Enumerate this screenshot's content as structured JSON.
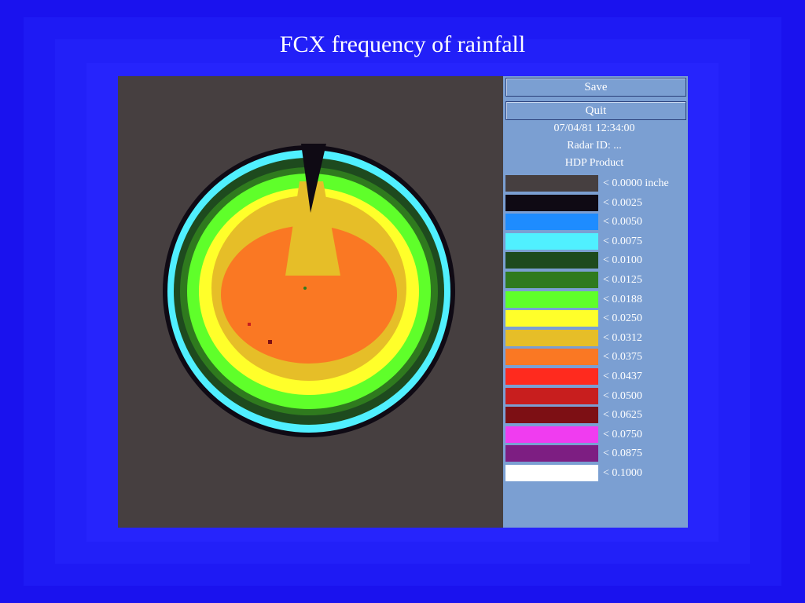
{
  "title": "FCX  frequency of rainfall",
  "buttons": [
    "Save",
    "Quit"
  ],
  "info": [
    "07/04/81  12:34:00",
    "Radar ID:  ...",
    "HDP Product"
  ],
  "legend": [
    {
      "label": "< 0.0000 inche",
      "color": "#463f40"
    },
    {
      "label": "< 0.0025",
      "color": "#0f0a14"
    },
    {
      "label": "< 0.0050",
      "color": "#1e8cff"
    },
    {
      "label": "< 0.0075",
      "color": "#50f0ff"
    },
    {
      "label": "< 0.0100",
      "color": "#1e4a1e"
    },
    {
      "label": "< 0.0125",
      "color": "#2f7a1e"
    },
    {
      "label": "< 0.0188",
      "color": "#5fff2a"
    },
    {
      "label": "< 0.0250",
      "color": "#ffff2a"
    },
    {
      "label": "< 0.0312",
      "color": "#e6be28"
    },
    {
      "label": "< 0.0375",
      "color": "#fa7823"
    },
    {
      "label": "< 0.0437",
      "color": "#ff2a1e"
    },
    {
      "label": "< 0.0500",
      "color": "#c81e1e"
    },
    {
      "label": "< 0.0625",
      "color": "#7d0f14"
    },
    {
      "label": "< 0.0750",
      "color": "#f03cf0"
    },
    {
      "label": "< 0.0875",
      "color": "#7d1e82"
    },
    {
      "label": "< 0.1000",
      "color": "#ffffff"
    }
  ]
}
